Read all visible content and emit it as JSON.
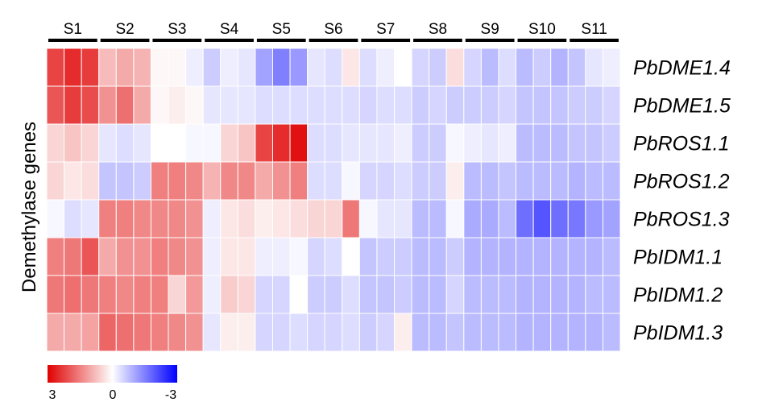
{
  "chart_data": {
    "type": "heatmap",
    "ylabel": "Demethylase genes",
    "groups": [
      "S1",
      "S2",
      "S3",
      "S4",
      "S5",
      "S6",
      "S7",
      "S8",
      "S9",
      "S10",
      "S11"
    ],
    "replicates_per_group": 3,
    "rows": [
      "PbDME1.4",
      "PbDME1.5",
      "PbROS1.1",
      "PbROS1.2",
      "PbROS1.3",
      "PbIDM1.1",
      "PbIDM1.2",
      "PbIDM1.3"
    ],
    "values": [
      [
        2.2,
        2.5,
        2.3,
        0.8,
        1.0,
        0.9,
        0.1,
        0.1,
        -0.2,
        -0.6,
        -0.2,
        -0.3,
        -1.1,
        -1.5,
        -1.2,
        -0.3,
        -0.4,
        0.3,
        -0.4,
        -0.2,
        0.0,
        -0.5,
        -0.6,
        0.4,
        -0.5,
        -0.8,
        -0.4,
        -0.8,
        -0.6,
        -0.9,
        -0.7,
        -0.3,
        -0.2
      ],
      [
        2.0,
        2.3,
        2.1,
        1.3,
        1.7,
        1.0,
        0.1,
        0.2,
        0.1,
        -0.3,
        -0.3,
        -0.3,
        -0.4,
        -0.4,
        -0.4,
        -0.4,
        -0.4,
        -0.4,
        -0.5,
        -0.4,
        -0.4,
        -0.6,
        -0.5,
        -0.6,
        -0.6,
        -0.6,
        -0.5,
        -0.7,
        -0.7,
        -0.7,
        -0.6,
        -0.6,
        -0.5
      ],
      [
        0.5,
        0.7,
        0.5,
        -0.3,
        -0.4,
        -0.3,
        0.0,
        0.0,
        -0.1,
        -0.1,
        0.5,
        0.7,
        2.2,
        2.5,
        2.8,
        -0.4,
        -0.4,
        -0.3,
        -0.3,
        -0.3,
        -0.2,
        -0.6,
        -0.6,
        -0.1,
        -0.2,
        -0.3,
        -0.2,
        -0.8,
        -0.8,
        -0.8,
        -0.7,
        -0.7,
        -0.6
      ],
      [
        0.5,
        0.3,
        0.4,
        -0.7,
        -0.7,
        -0.6,
        1.5,
        1.5,
        1.4,
        0.9,
        1.4,
        1.4,
        1.0,
        1.3,
        1.5,
        -0.4,
        -0.4,
        -0.1,
        -0.5,
        -0.5,
        -0.4,
        -0.6,
        -0.6,
        0.2,
        -0.8,
        -0.8,
        -0.7,
        -0.8,
        -0.8,
        -0.8,
        -0.9,
        -0.8,
        -0.8
      ],
      [
        -0.1,
        -0.4,
        -0.3,
        1.5,
        1.5,
        1.4,
        1.4,
        1.4,
        1.3,
        -0.2,
        0.3,
        0.4,
        0.2,
        0.3,
        0.4,
        0.5,
        0.5,
        1.6,
        -0.1,
        -0.3,
        -0.3,
        -0.8,
        -0.8,
        -0.1,
        -1.0,
        -1.0,
        -0.8,
        -1.7,
        -2.0,
        -1.7,
        -1.6,
        -1.2,
        -1.1
      ],
      [
        1.5,
        1.6,
        2.0,
        1.0,
        1.3,
        1.3,
        1.5,
        1.4,
        1.3,
        -0.2,
        0.3,
        0.3,
        -0.2,
        -0.2,
        -0.1,
        -0.5,
        -0.4,
        0.0,
        -0.7,
        -0.6,
        -0.6,
        -0.8,
        -0.8,
        -0.6,
        -0.9,
        -0.9,
        -0.9,
        -0.9,
        -0.9,
        -0.9,
        -0.9,
        -0.9,
        -0.8
      ],
      [
        1.6,
        1.7,
        1.6,
        1.5,
        1.4,
        1.5,
        1.5,
        0.5,
        1.2,
        -0.2,
        0.6,
        0.5,
        -0.5,
        -0.5,
        0.0,
        -0.6,
        -0.6,
        -0.4,
        -0.7,
        -0.7,
        -0.6,
        -0.8,
        -0.8,
        -0.5,
        -0.8,
        -0.8,
        -0.8,
        -0.9,
        -0.9,
        -0.9,
        -0.9,
        -0.8,
        -0.8
      ],
      [
        1.0,
        1.0,
        1.1,
        1.8,
        1.7,
        1.6,
        1.5,
        1.4,
        1.3,
        -0.3,
        0.2,
        0.2,
        -0.5,
        -0.5,
        -0.4,
        -0.5,
        -0.5,
        -0.4,
        -0.6,
        -0.5,
        0.2,
        -0.8,
        -0.8,
        -0.7,
        -0.8,
        -0.8,
        -0.8,
        -0.9,
        -0.9,
        -0.9,
        -0.9,
        -0.9,
        -0.8
      ]
    ],
    "colorbar": {
      "min": -3,
      "max": 3,
      "ticks": [
        "3",
        "0",
        "-3"
      ],
      "colors": {
        "high": "#e00000",
        "mid": "#ffffff",
        "low": "#0000ff"
      }
    }
  }
}
